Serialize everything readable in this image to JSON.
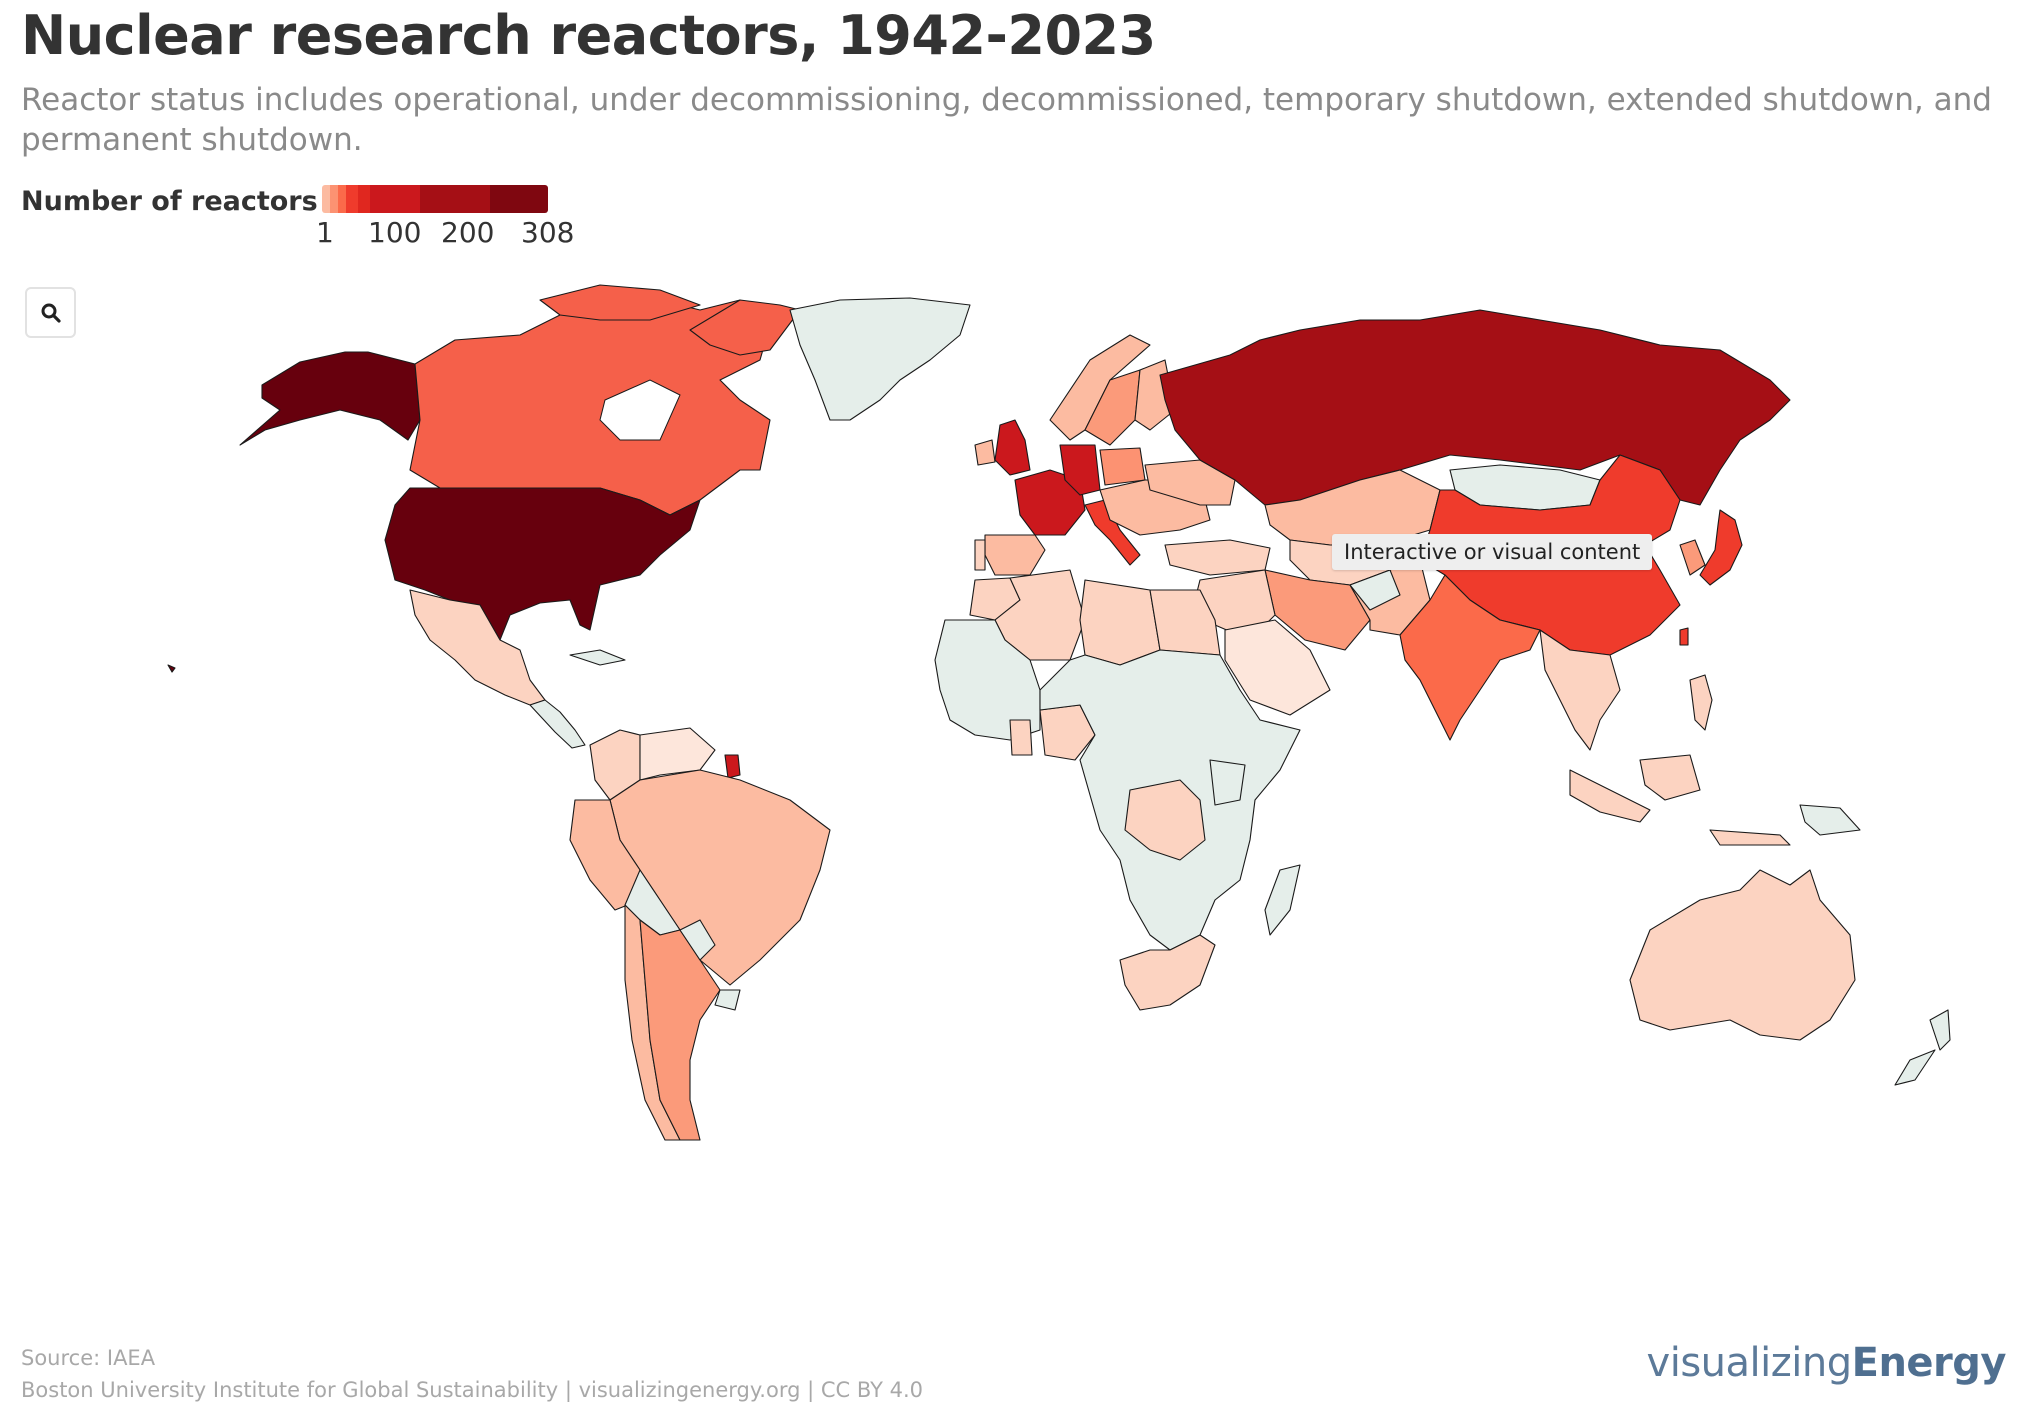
{
  "header": {
    "title": "Nuclear research reactors, 1942-2023",
    "subtitle": "Reactor status includes operational, under decommissioning, decommissioned, temporary shutdown, extended shutdown, and permanent shutdown."
  },
  "legend": {
    "title": "Number of reactors",
    "ticks": [
      "1",
      "100",
      "200",
      "308"
    ],
    "colors": [
      "#fcd3c1",
      "#fcbba1",
      "#fc9272",
      "#fb6a4a",
      "#ef3b2c",
      "#cb181d",
      "#a50f15",
      "#67000d"
    ]
  },
  "controls": {
    "search_icon": "search-icon"
  },
  "tooltip": {
    "text": "Interactive or visual content"
  },
  "footer": {
    "source": "Source: IAEA",
    "credit": "Boston University Institute for Global Sustainability | visualizingenergy.org | CC BY 4.0"
  },
  "brand": {
    "light": "visualizing",
    "bold": "Energy"
  },
  "map": {
    "no_data_color": "#e5eeea",
    "countries": [
      {
        "name": "United States",
        "color": "#67000d"
      },
      {
        "name": "Alaska",
        "color": "#67000d"
      },
      {
        "name": "Canada",
        "color": "#f5604a"
      },
      {
        "name": "Greenland",
        "color": "#e5eeea"
      },
      {
        "name": "Mexico",
        "color": "#fcd3c1"
      },
      {
        "name": "Brazil",
        "color": "#fcbba1"
      },
      {
        "name": "Argentina",
        "color": "#fb9a7a"
      },
      {
        "name": "Russia",
        "color": "#a50f15"
      },
      {
        "name": "China",
        "color": "#ef3b2c"
      },
      {
        "name": "India",
        "color": "#fb6a4a"
      },
      {
        "name": "Japan",
        "color": "#ef3b2c"
      },
      {
        "name": "Australia",
        "color": "#fcd3c1"
      },
      {
        "name": "Africa",
        "color": "#e5eeea"
      },
      {
        "name": "Europe",
        "color": "#fcbba1"
      }
    ]
  }
}
